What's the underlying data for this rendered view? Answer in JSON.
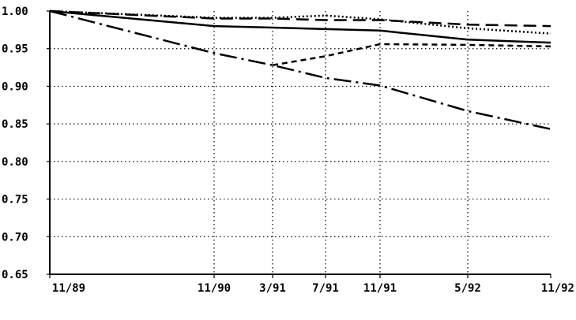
{
  "chart_data": {
    "type": "line",
    "title": "",
    "xlabel": "",
    "ylabel": "",
    "ylim": [
      0.65,
      1.0
    ],
    "y_ticks": [
      "1.00",
      "0.95",
      "0.90",
      "0.85",
      "0.80",
      "0.75",
      "0.70",
      "0.65"
    ],
    "x_categories": [
      "11/89",
      "11/90",
      "3/91",
      "7/91",
      "11/91",
      "5/92",
      "11/92"
    ],
    "grid": "dotted",
    "legend": "none",
    "series": [
      {
        "style": "solid",
        "points": [
          [
            "11/89",
            1.0
          ],
          [
            "11/90",
            0.98
          ],
          [
            "3/91",
            0.978
          ],
          [
            "7/91",
            0.976
          ],
          [
            "11/91",
            0.974
          ],
          [
            "5/92",
            0.962
          ],
          [
            "11/92",
            0.958
          ]
        ]
      },
      {
        "style": "long-dash",
        "points": [
          [
            "11/89",
            1.0
          ],
          [
            "11/90",
            0.99
          ],
          [
            "3/91",
            0.99
          ],
          [
            "7/91",
            0.988
          ],
          [
            "11/91",
            0.988
          ],
          [
            "5/92",
            0.982
          ],
          [
            "11/92",
            0.98
          ]
        ]
      },
      {
        "style": "dotted",
        "points": [
          [
            "11/89",
            1.0
          ],
          [
            "11/90",
            0.991
          ],
          [
            "3/91",
            0.991
          ],
          [
            "7/91",
            0.994
          ],
          [
            "11/91",
            0.989
          ],
          [
            "5/92",
            0.977
          ],
          [
            "11/92",
            0.97
          ]
        ]
      },
      {
        "style": "dash-dot",
        "points": [
          [
            "11/89",
            1.0
          ],
          [
            "11/90",
            0.944
          ],
          [
            "3/91",
            0.928
          ],
          [
            "7/91",
            0.911
          ],
          [
            "11/91",
            0.901
          ],
          [
            "5/92",
            0.867
          ],
          [
            "11/92",
            0.843
          ]
        ]
      },
      {
        "style": "short-dash",
        "points": [
          [
            "3/91",
            0.928
          ],
          [
            "7/91",
            0.94
          ],
          [
            "11/91",
            0.956
          ],
          [
            "5/92",
            0.955
          ],
          [
            "11/92",
            0.953
          ]
        ]
      }
    ]
  }
}
